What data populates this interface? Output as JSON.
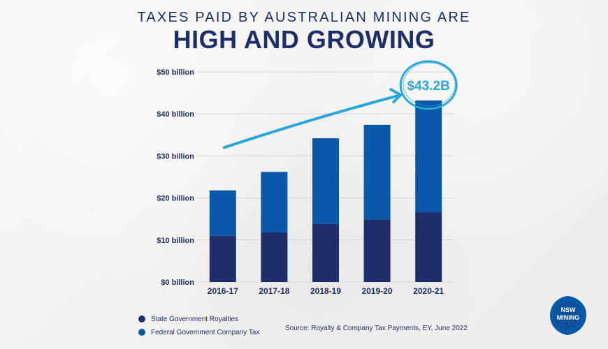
{
  "heading": {
    "subtitle": "TAXES PAID BY AUSTRALIAN MINING ARE",
    "title": "HIGH AND GROWING"
  },
  "chart_data": {
    "type": "bar",
    "stacked": true,
    "categories": [
      "2016-17",
      "2017-18",
      "2018-19",
      "2019-20",
      "2020-21"
    ],
    "series": [
      {
        "name": "State Government Royalties",
        "values": [
          11.0,
          11.8,
          13.8,
          14.9,
          16.6
        ],
        "color": "#1f2d6b"
      },
      {
        "name": "Federal Government Company Tax",
        "values": [
          10.8,
          14.4,
          20.4,
          22.5,
          26.6
        ],
        "color": "#0a58a8"
      }
    ],
    "totals": [
      21.8,
      26.2,
      34.2,
      37.4,
      43.2
    ],
    "ylim": [
      0,
      50
    ],
    "yticks": [
      0,
      10,
      20,
      30,
      40,
      50
    ],
    "ytick_labels": [
      "$0 billion",
      "$10 billion",
      "$20 billion",
      "$30 billion",
      "$40 billion",
      "$50 billion"
    ],
    "grid": true,
    "legend": "bottom-left",
    "annotation": {
      "label": "$43.2B",
      "category": "2020-21",
      "color": "#2aa6d9"
    }
  },
  "source": "Source:  Royalty & Company Tax Payments, EY, June 2022",
  "logo": {
    "line1": "NSW",
    "line2": "MINING",
    "color": "#0a58a8"
  },
  "colors": {
    "text": "#1f2d6b",
    "accent": "#2aa6d9",
    "grid": "#d4d4d4"
  }
}
